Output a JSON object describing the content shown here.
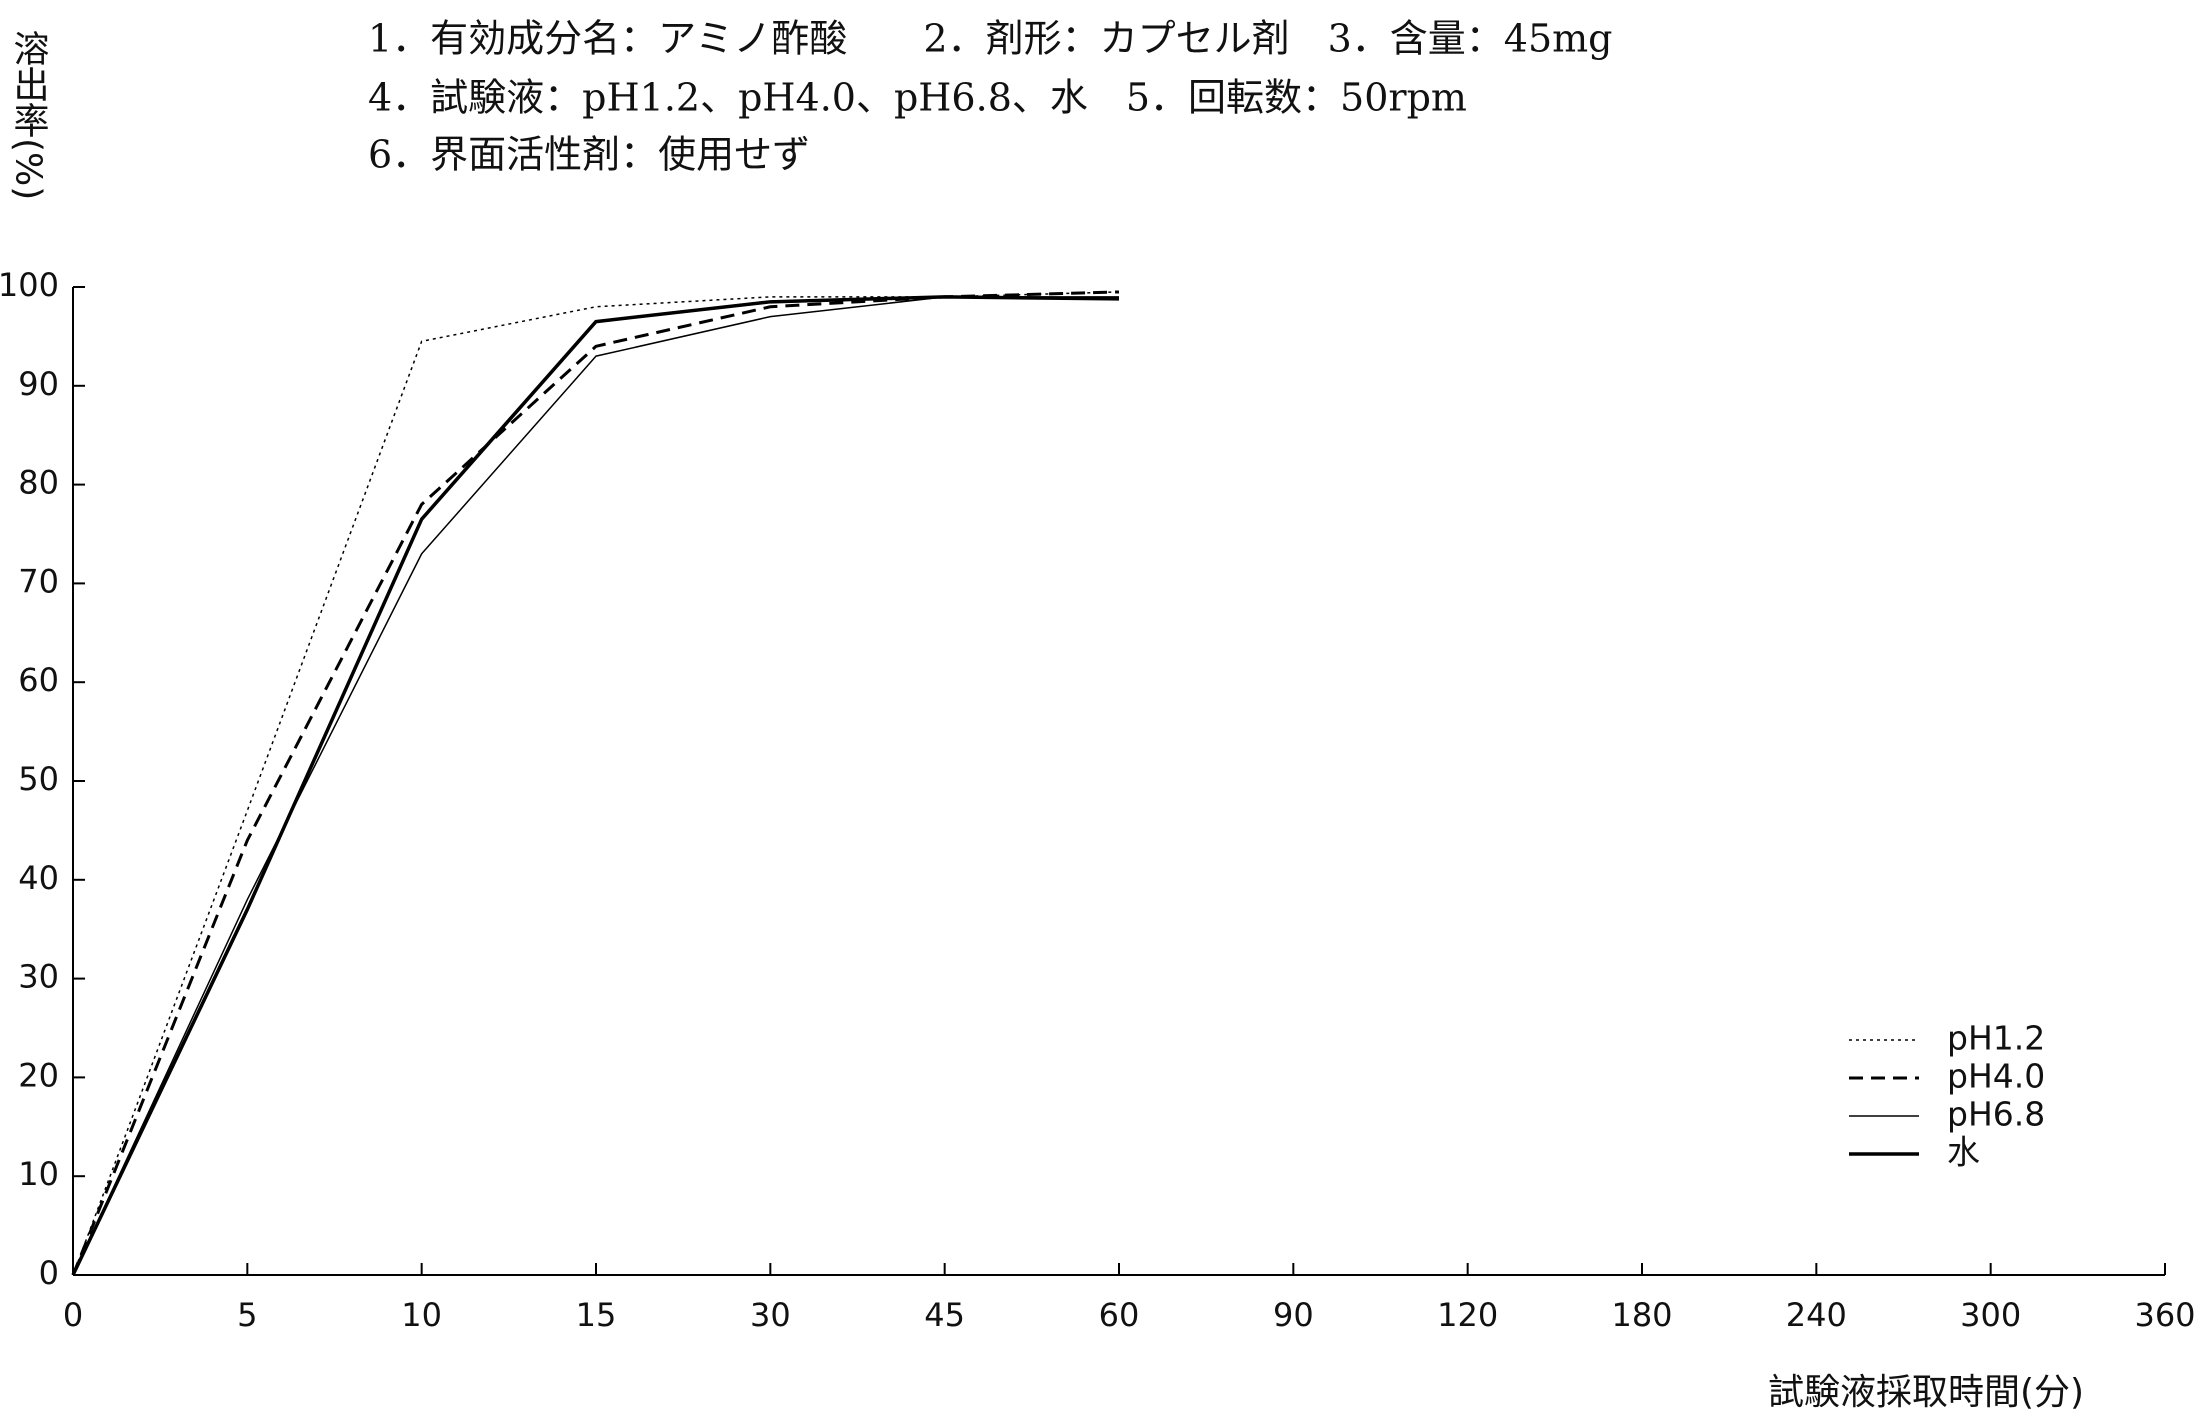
{
  "chart_data": {
    "type": "line",
    "title_lines": [
      "1．有効成分名：アミノ酢酸　　2．剤形：カプセル剤　3．含量：45mg",
      "4．試験液：pH1.2、pH4.0、pH6.8、水　5．回転数：50rpm",
      "6．界面活性剤：使用せず"
    ],
    "y_label": "溶出率(%)",
    "x_label": "試験液採取時間(分)",
    "categories": [
      "0",
      "5",
      "10",
      "15",
      "30",
      "45",
      "60",
      "90",
      "120",
      "180",
      "240",
      "300",
      "360"
    ],
    "ylim": [
      0,
      100
    ],
    "yticks": [
      0,
      10,
      20,
      30,
      40,
      50,
      60,
      70,
      80,
      90,
      100
    ],
    "legend": "lower right",
    "series": [
      {
        "name": "pH1.2",
        "color": "#000000",
        "dash": "dotted",
        "width": 1.5,
        "values": [
          0,
          47,
          94.5,
          98,
          99,
          99,
          99.5,
          null,
          null,
          null,
          null,
          null,
          null
        ]
      },
      {
        "name": "pH4.0",
        "color": "#000000",
        "dash": "dashed",
        "width": 3,
        "values": [
          0,
          44,
          78,
          94,
          98,
          99,
          99.5,
          null,
          null,
          null,
          null,
          null,
          null
        ]
      },
      {
        "name": "pH6.8",
        "color": "#000000",
        "dash": "solid",
        "width": 1.5,
        "values": [
          0,
          38,
          73,
          93,
          97,
          99,
          99,
          null,
          null,
          null,
          null,
          null,
          null
        ]
      },
      {
        "name": "水",
        "color": "#000000",
        "dash": "solid",
        "width": 3.5,
        "values": [
          0,
          37,
          76.5,
          96.5,
          98.5,
          99,
          98.8,
          null,
          null,
          null,
          null,
          null,
          null
        ]
      }
    ]
  }
}
